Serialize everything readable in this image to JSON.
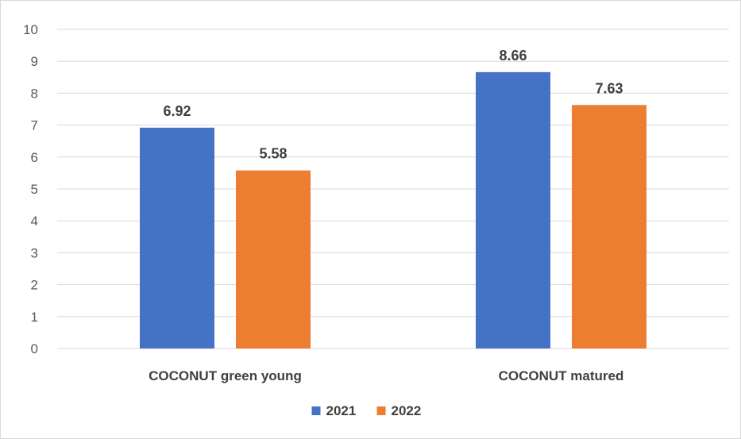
{
  "chart_data": {
    "type": "bar",
    "categories": [
      "COCONUT green young",
      "COCONUT matured"
    ],
    "series": [
      {
        "name": "2021",
        "values": [
          6.92,
          8.66
        ],
        "color": "#4472C4"
      },
      {
        "name": "2022",
        "values": [
          5.58,
          7.63
        ],
        "color": "#ED7D31"
      }
    ],
    "title": "",
    "xlabel": "",
    "ylabel": "",
    "ylim": [
      0,
      10
    ],
    "yticks": [
      0,
      1,
      2,
      3,
      4,
      5,
      6,
      7,
      8,
      9,
      10
    ],
    "grid": true,
    "legend_position": "bottom",
    "data_labels": [
      "6.92",
      "5.58",
      "8.66",
      "7.63"
    ],
    "gridline_color": "#d9d9d9"
  }
}
